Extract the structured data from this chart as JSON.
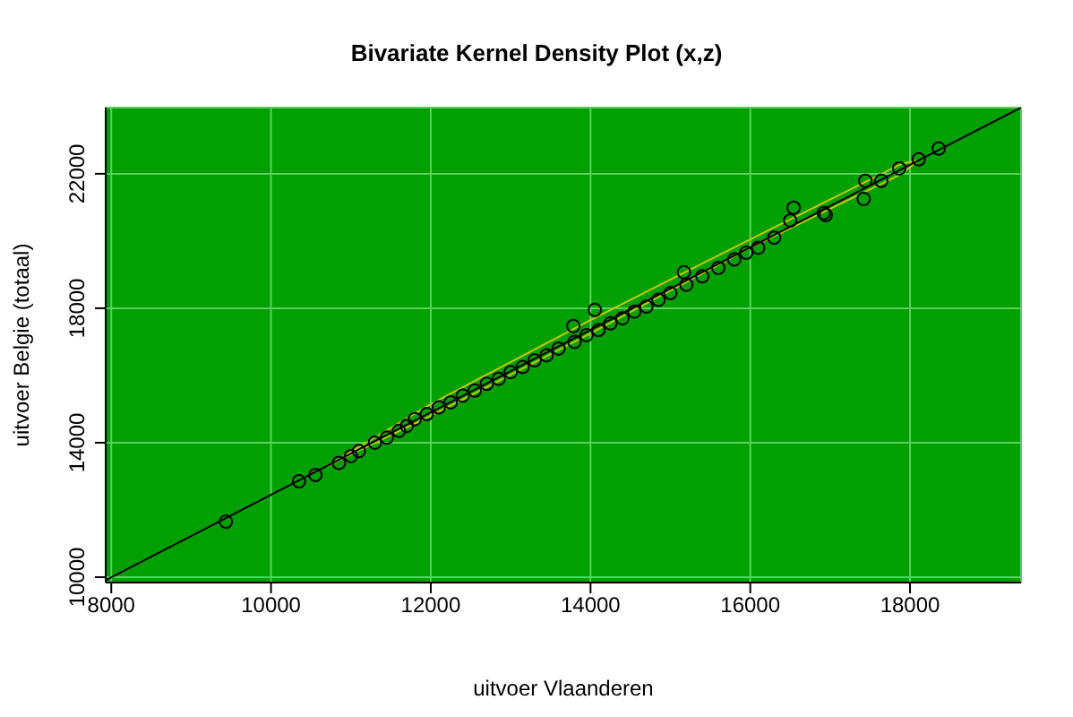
{
  "chart_data": {
    "type": "scatter",
    "title": "Bivariate Kernel Density Plot (x,z)",
    "xlabel": "uitvoer Vlaanderen",
    "ylabel": "uitvoer Belgie (totaal)",
    "xlim": [
      7930,
      19390
    ],
    "ylim": [
      9840,
      23970
    ],
    "xticks": [
      8000,
      10000,
      12000,
      14000,
      16000,
      18000
    ],
    "yticks": [
      10000,
      14000,
      18000,
      22000
    ],
    "grid": true,
    "series": [
      {
        "type": "line",
        "color": "#c8c800",
        "x": [
          10700,
          12000,
          14000,
          16000,
          17900,
          18100
        ],
        "values": [
          13300,
          15150,
          17650,
          20050,
          22300,
          22400
        ]
      },
      {
        "type": "line",
        "color": "#c8c800",
        "x": [
          10700,
          12000,
          14000,
          16000,
          17900,
          18100
        ],
        "values": [
          13300,
          14800,
          17250,
          19800,
          22000,
          22400
        ]
      },
      {
        "type": "line",
        "color": "#000000",
        "x": [
          7930,
          19390
        ],
        "values": [
          9910,
          23970
        ]
      },
      {
        "marker": "circle",
        "color": "#000000",
        "x": [
          9435,
          10350,
          10556,
          10850,
          11000,
          11100,
          11300,
          11450,
          11600,
          11700,
          11800,
          11950,
          12100,
          12250,
          12400,
          12550,
          12700,
          12850,
          13000,
          13150,
          13300,
          13450,
          13600,
          13785,
          13800,
          13950,
          14054,
          14100,
          14250,
          14400,
          14550,
          14700,
          14850,
          15000,
          15170,
          15200,
          15400,
          15600,
          15800,
          15950,
          16100,
          16300,
          16500,
          16543,
          16920,
          16946,
          17420,
          17440,
          17640,
          17865,
          18110,
          18360
        ],
        "values": [
          11650,
          12850,
          13040,
          13400,
          13600,
          13750,
          14000,
          14150,
          14350,
          14500,
          14700,
          14850,
          15050,
          15200,
          15400,
          15550,
          15750,
          15900,
          16100,
          16250,
          16450,
          16600,
          16800,
          17470,
          17000,
          17200,
          17950,
          17350,
          17550,
          17700,
          17900,
          18050,
          18250,
          18450,
          19070,
          18700,
          18950,
          19200,
          19450,
          19650,
          19800,
          20100,
          20610,
          20990,
          20830,
          20770,
          21250,
          21790,
          21790,
          22160,
          22430,
          22750
        ]
      }
    ]
  }
}
